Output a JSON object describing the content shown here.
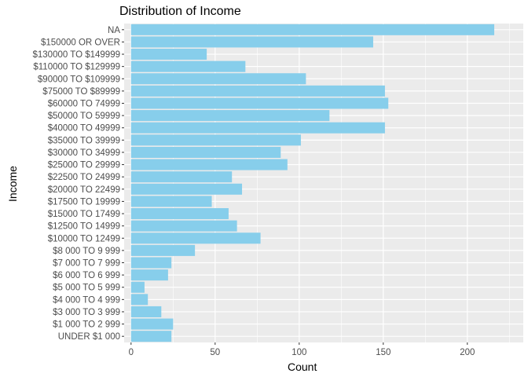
{
  "chart_data": {
    "type": "bar",
    "orientation": "horizontal",
    "title": "Distribution of Income",
    "xlabel": "Count",
    "ylabel": "Income",
    "categories": [
      "NA",
      "$150000 OR OVER",
      "$130000 TO $149999",
      "$110000 TO $129999",
      "$90000 TO $109999",
      "$75000 TO $89999",
      "$60000 TO 74999",
      "$50000 TO 59999",
      "$40000 TO 49999",
      "$35000 TO 39999",
      "$30000 TO 34999",
      "$25000 TO 29999",
      "$22500 TO 24999",
      "$20000 TO 22499",
      "$17500 TO 19999",
      "$15000 TO 17499",
      "$12500 TO 14999",
      "$10000 TO 12499",
      "$8 000 TO 9 999",
      "$7 000 TO 7 999",
      "$6 000 TO 6 999",
      "$5 000 TO 5 999",
      "$4 000 TO 4 999",
      "$3 000 TO 3 999",
      "$1 000 TO 2 999",
      "UNDER $1 000"
    ],
    "values": [
      216,
      144,
      45,
      68,
      104,
      151,
      153,
      118,
      151,
      101,
      89,
      93,
      60,
      66,
      48,
      58,
      63,
      77,
      38,
      24,
      22,
      8,
      10,
      18,
      25,
      24
    ],
    "xlim": [
      0,
      225
    ],
    "xticks": [
      0,
      50,
      100,
      150,
      200
    ],
    "bar_color": "#87CEEB",
    "panel_background": "#EBEBEB",
    "grid": true,
    "legend": "none"
  }
}
